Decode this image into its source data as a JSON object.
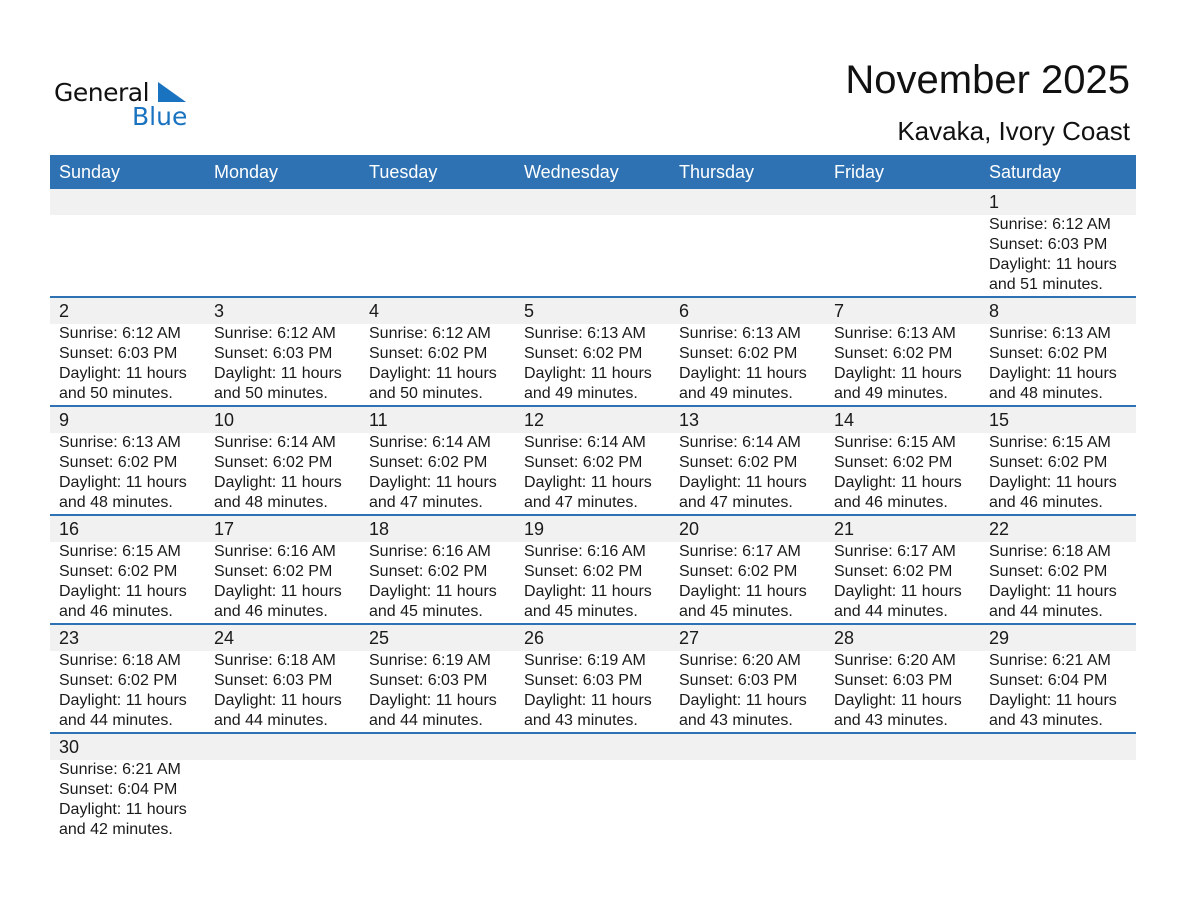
{
  "logo": {
    "general": "General",
    "blue": "Blue"
  },
  "header": {
    "title": "November 2025",
    "location": "Kavaka, Ivory Coast"
  },
  "weekdays": [
    "Sunday",
    "Monday",
    "Tuesday",
    "Wednesday",
    "Thursday",
    "Friday",
    "Saturday"
  ],
  "colors": {
    "header_bg": "#2e72b3",
    "band_bg": "#f1f1f1",
    "logo_blue": "#1a73c0"
  },
  "weeks": [
    [
      null,
      null,
      null,
      null,
      null,
      null,
      {
        "day": "1",
        "sunrise": "Sunrise: 6:12 AM",
        "sunset": "Sunset: 6:03 PM",
        "daylight": "Daylight: 11 hours",
        "minutes": "and 51 minutes."
      }
    ],
    [
      {
        "day": "2",
        "sunrise": "Sunrise: 6:12 AM",
        "sunset": "Sunset: 6:03 PM",
        "daylight": "Daylight: 11 hours",
        "minutes": "and 50 minutes."
      },
      {
        "day": "3",
        "sunrise": "Sunrise: 6:12 AM",
        "sunset": "Sunset: 6:03 PM",
        "daylight": "Daylight: 11 hours",
        "minutes": "and 50 minutes."
      },
      {
        "day": "4",
        "sunrise": "Sunrise: 6:12 AM",
        "sunset": "Sunset: 6:02 PM",
        "daylight": "Daylight: 11 hours",
        "minutes": "and 50 minutes."
      },
      {
        "day": "5",
        "sunrise": "Sunrise: 6:13 AM",
        "sunset": "Sunset: 6:02 PM",
        "daylight": "Daylight: 11 hours",
        "minutes": "and 49 minutes."
      },
      {
        "day": "6",
        "sunrise": "Sunrise: 6:13 AM",
        "sunset": "Sunset: 6:02 PM",
        "daylight": "Daylight: 11 hours",
        "minutes": "and 49 minutes."
      },
      {
        "day": "7",
        "sunrise": "Sunrise: 6:13 AM",
        "sunset": "Sunset: 6:02 PM",
        "daylight": "Daylight: 11 hours",
        "minutes": "and 49 minutes."
      },
      {
        "day": "8",
        "sunrise": "Sunrise: 6:13 AM",
        "sunset": "Sunset: 6:02 PM",
        "daylight": "Daylight: 11 hours",
        "minutes": "and 48 minutes."
      }
    ],
    [
      {
        "day": "9",
        "sunrise": "Sunrise: 6:13 AM",
        "sunset": "Sunset: 6:02 PM",
        "daylight": "Daylight: 11 hours",
        "minutes": "and 48 minutes."
      },
      {
        "day": "10",
        "sunrise": "Sunrise: 6:14 AM",
        "sunset": "Sunset: 6:02 PM",
        "daylight": "Daylight: 11 hours",
        "minutes": "and 48 minutes."
      },
      {
        "day": "11",
        "sunrise": "Sunrise: 6:14 AM",
        "sunset": "Sunset: 6:02 PM",
        "daylight": "Daylight: 11 hours",
        "minutes": "and 47 minutes."
      },
      {
        "day": "12",
        "sunrise": "Sunrise: 6:14 AM",
        "sunset": "Sunset: 6:02 PM",
        "daylight": "Daylight: 11 hours",
        "minutes": "and 47 minutes."
      },
      {
        "day": "13",
        "sunrise": "Sunrise: 6:14 AM",
        "sunset": "Sunset: 6:02 PM",
        "daylight": "Daylight: 11 hours",
        "minutes": "and 47 minutes."
      },
      {
        "day": "14",
        "sunrise": "Sunrise: 6:15 AM",
        "sunset": "Sunset: 6:02 PM",
        "daylight": "Daylight: 11 hours",
        "minutes": "and 46 minutes."
      },
      {
        "day": "15",
        "sunrise": "Sunrise: 6:15 AM",
        "sunset": "Sunset: 6:02 PM",
        "daylight": "Daylight: 11 hours",
        "minutes": "and 46 minutes."
      }
    ],
    [
      {
        "day": "16",
        "sunrise": "Sunrise: 6:15 AM",
        "sunset": "Sunset: 6:02 PM",
        "daylight": "Daylight: 11 hours",
        "minutes": "and 46 minutes."
      },
      {
        "day": "17",
        "sunrise": "Sunrise: 6:16 AM",
        "sunset": "Sunset: 6:02 PM",
        "daylight": "Daylight: 11 hours",
        "minutes": "and 46 minutes."
      },
      {
        "day": "18",
        "sunrise": "Sunrise: 6:16 AM",
        "sunset": "Sunset: 6:02 PM",
        "daylight": "Daylight: 11 hours",
        "minutes": "and 45 minutes."
      },
      {
        "day": "19",
        "sunrise": "Sunrise: 6:16 AM",
        "sunset": "Sunset: 6:02 PM",
        "daylight": "Daylight: 11 hours",
        "minutes": "and 45 minutes."
      },
      {
        "day": "20",
        "sunrise": "Sunrise: 6:17 AM",
        "sunset": "Sunset: 6:02 PM",
        "daylight": "Daylight: 11 hours",
        "minutes": "and 45 minutes."
      },
      {
        "day": "21",
        "sunrise": "Sunrise: 6:17 AM",
        "sunset": "Sunset: 6:02 PM",
        "daylight": "Daylight: 11 hours",
        "minutes": "and 44 minutes."
      },
      {
        "day": "22",
        "sunrise": "Sunrise: 6:18 AM",
        "sunset": "Sunset: 6:02 PM",
        "daylight": "Daylight: 11 hours",
        "minutes": "and 44 minutes."
      }
    ],
    [
      {
        "day": "23",
        "sunrise": "Sunrise: 6:18 AM",
        "sunset": "Sunset: 6:02 PM",
        "daylight": "Daylight: 11 hours",
        "minutes": "and 44 minutes."
      },
      {
        "day": "24",
        "sunrise": "Sunrise: 6:18 AM",
        "sunset": "Sunset: 6:03 PM",
        "daylight": "Daylight: 11 hours",
        "minutes": "and 44 minutes."
      },
      {
        "day": "25",
        "sunrise": "Sunrise: 6:19 AM",
        "sunset": "Sunset: 6:03 PM",
        "daylight": "Daylight: 11 hours",
        "minutes": "and 44 minutes."
      },
      {
        "day": "26",
        "sunrise": "Sunrise: 6:19 AM",
        "sunset": "Sunset: 6:03 PM",
        "daylight": "Daylight: 11 hours",
        "minutes": "and 43 minutes."
      },
      {
        "day": "27",
        "sunrise": "Sunrise: 6:20 AM",
        "sunset": "Sunset: 6:03 PM",
        "daylight": "Daylight: 11 hours",
        "minutes": "and 43 minutes."
      },
      {
        "day": "28",
        "sunrise": "Sunrise: 6:20 AM",
        "sunset": "Sunset: 6:03 PM",
        "daylight": "Daylight: 11 hours",
        "minutes": "and 43 minutes."
      },
      {
        "day": "29",
        "sunrise": "Sunrise: 6:21 AM",
        "sunset": "Sunset: 6:04 PM",
        "daylight": "Daylight: 11 hours",
        "minutes": "and 43 minutes."
      }
    ],
    [
      {
        "day": "30",
        "sunrise": "Sunrise: 6:21 AM",
        "sunset": "Sunset: 6:04 PM",
        "daylight": "Daylight: 11 hours",
        "minutes": "and 42 minutes."
      },
      null,
      null,
      null,
      null,
      null,
      null
    ]
  ]
}
